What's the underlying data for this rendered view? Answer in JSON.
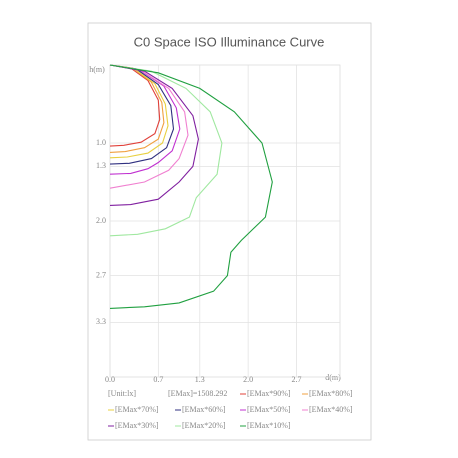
{
  "chart_data": {
    "type": "iso-curve",
    "title": "C0 Space ISO Illuminance Curve",
    "x_label": "d(m)",
    "y_label": "h(m)",
    "xlim": [
      0,
      3.33
    ],
    "ylim": [
      0,
      4.0
    ],
    "xticks": [
      {
        "value": 0,
        "label": "0.0"
      },
      0.7,
      1.3,
      {
        "value": 2,
        "label": "2.0"
      },
      2.7
    ],
    "yticks": [
      {
        "value": 1,
        "label": "1.0"
      },
      1.3,
      {
        "value": 2,
        "label": "2.0"
      },
      2.7,
      3.3
    ],
    "grid": true,
    "unit": "[Unit:lx]",
    "emax": "[EMax]=1508.292",
    "series": [
      {
        "name": "[EMax*90%]",
        "color": "#e0403a",
        "x": [
          0,
          0.3,
          0.55,
          0.7,
          0.72,
          0.65,
          0.45,
          0.2,
          0
        ],
        "y": [
          0,
          0.04,
          0.2,
          0.45,
          0.7,
          0.88,
          0.99,
          1.03,
          1.04
        ]
      },
      {
        "name": "[EMax*80%]",
        "color": "#f0a040",
        "x": [
          0,
          0.33,
          0.6,
          0.75,
          0.78,
          0.7,
          0.5,
          0.22,
          0
        ],
        "y": [
          0,
          0.04,
          0.22,
          0.48,
          0.74,
          0.95,
          1.06,
          1.11,
          1.12
        ]
      },
      {
        "name": "[EMax*70%]",
        "color": "#e8d040",
        "x": [
          0,
          0.35,
          0.65,
          0.8,
          0.84,
          0.76,
          0.55,
          0.25,
          0
        ],
        "y": [
          0,
          0.05,
          0.24,
          0.5,
          0.78,
          1.0,
          1.13,
          1.18,
          1.19
        ]
      },
      {
        "name": "[EMax*60%]",
        "color": "#303080",
        "x": [
          0,
          0.38,
          0.7,
          0.88,
          0.92,
          0.82,
          0.6,
          0.28,
          0
        ],
        "y": [
          0,
          0.05,
          0.25,
          0.52,
          0.82,
          1.06,
          1.2,
          1.26,
          1.27
        ]
      },
      {
        "name": "[EMax*50%]",
        "color": "#c030d0",
        "x": [
          0,
          0.42,
          0.78,
          0.96,
          1.01,
          0.9,
          0.7,
          0.55,
          0.3,
          0
        ],
        "y": [
          0,
          0.06,
          0.27,
          0.55,
          0.82,
          1.1,
          1.25,
          1.33,
          1.39,
          1.4
        ]
      },
      {
        "name": "[EMax*40%]",
        "color": "#f080d0",
        "x": [
          0,
          0.45,
          0.85,
          1.08,
          1.13,
          1.0,
          0.85,
          0.5,
          0
        ],
        "y": [
          0,
          0.07,
          0.3,
          0.6,
          0.9,
          1.2,
          1.35,
          1.5,
          1.58
        ]
      },
      {
        "name": "[EMax*30%]",
        "color": "#8020a0",
        "x": [
          0,
          0.5,
          0.9,
          1.2,
          1.28,
          1.2,
          1.0,
          0.7,
          0.3,
          0
        ],
        "y": [
          0,
          0.08,
          0.3,
          0.65,
          0.95,
          1.3,
          1.5,
          1.72,
          1.79,
          1.8
        ]
      },
      {
        "name": "[EMax*20%]",
        "color": "#a0e8a0",
        "x": [
          0,
          0.6,
          1.1,
          1.45,
          1.62,
          1.55,
          1.25,
          1.15,
          0.8,
          0.4,
          0
        ],
        "y": [
          0,
          0.08,
          0.3,
          0.6,
          1.0,
          1.4,
          1.7,
          1.95,
          2.1,
          2.17,
          2.19
        ]
      },
      {
        "name": "[EMax*10%]",
        "color": "#20a040",
        "x": [
          0,
          0.7,
          1.3,
          1.8,
          2.2,
          2.35,
          2.25,
          1.9,
          1.75,
          1.7,
          1.5,
          1.0,
          0.5,
          0
        ],
        "y": [
          0,
          0.1,
          0.3,
          0.6,
          1.0,
          1.5,
          1.95,
          2.25,
          2.4,
          2.7,
          2.9,
          3.05,
          3.1,
          3.12
        ]
      }
    ]
  }
}
